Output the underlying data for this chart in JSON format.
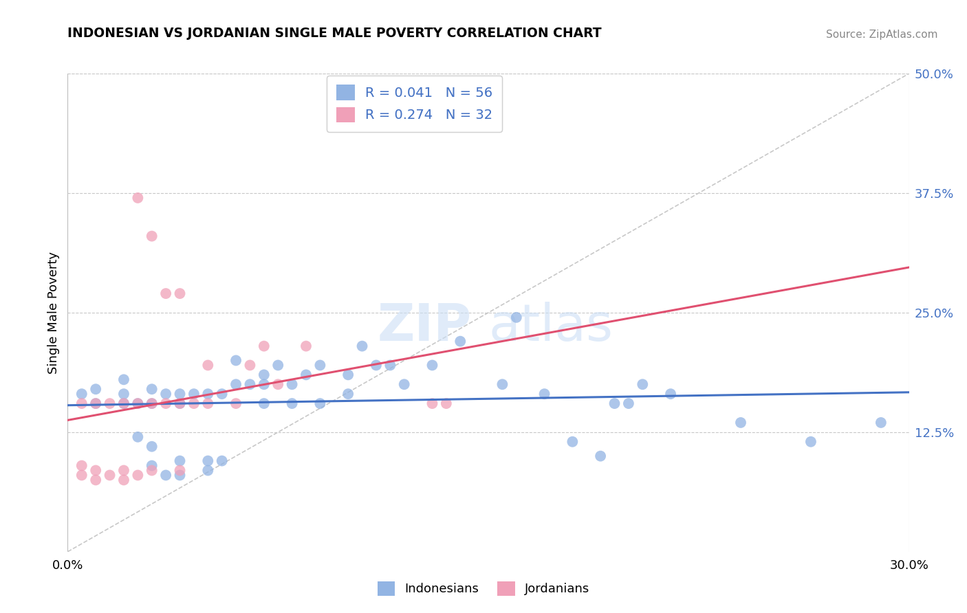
{
  "title": "INDONESIAN VS JORDANIAN SINGLE MALE POVERTY CORRELATION CHART",
  "source": "Source: ZipAtlas.com",
  "ylabel": "Single Male Poverty",
  "xlim": [
    0.0,
    0.3
  ],
  "ylim": [
    0.0,
    0.5
  ],
  "xticks": [
    0.0,
    0.05,
    0.1,
    0.15,
    0.2,
    0.25,
    0.3
  ],
  "xticklabels": [
    "0.0%",
    "",
    "",
    "",
    "",
    "",
    "30.0%"
  ],
  "yticks_right": [
    0.125,
    0.25,
    0.375,
    0.5
  ],
  "yticklabels_right": [
    "12.5%",
    "25.0%",
    "37.5%",
    "50.0%"
  ],
  "indonesian_color": "#92b4e3",
  "jordanian_color": "#f0a0b8",
  "indonesian_line_color": "#4472c4",
  "jordanian_line_color": "#e05070",
  "diagonal_color": "#c8c8c8",
  "legend_R_indonesian": "0.041",
  "legend_N_indonesian": "56",
  "legend_R_jordanian": "0.274",
  "legend_N_jordanian": "32",
  "legend_label_indonesian": "Indonesians",
  "legend_label_jordanian": "Jordanians",
  "indonesian_x": [
    0.005,
    0.01,
    0.01,
    0.02,
    0.02,
    0.02,
    0.025,
    0.025,
    0.03,
    0.03,
    0.03,
    0.03,
    0.035,
    0.035,
    0.04,
    0.04,
    0.04,
    0.04,
    0.045,
    0.05,
    0.05,
    0.05,
    0.055,
    0.055,
    0.06,
    0.06,
    0.065,
    0.07,
    0.07,
    0.07,
    0.075,
    0.08,
    0.08,
    0.085,
    0.09,
    0.09,
    0.1,
    0.1,
    0.105,
    0.11,
    0.115,
    0.12,
    0.13,
    0.14,
    0.155,
    0.16,
    0.17,
    0.18,
    0.19,
    0.195,
    0.2,
    0.205,
    0.215,
    0.24,
    0.265,
    0.29
  ],
  "indonesian_y": [
    0.165,
    0.155,
    0.17,
    0.155,
    0.165,
    0.18,
    0.12,
    0.155,
    0.09,
    0.11,
    0.155,
    0.17,
    0.08,
    0.165,
    0.08,
    0.095,
    0.155,
    0.165,
    0.165,
    0.085,
    0.095,
    0.165,
    0.095,
    0.165,
    0.175,
    0.2,
    0.175,
    0.155,
    0.175,
    0.185,
    0.195,
    0.155,
    0.175,
    0.185,
    0.155,
    0.195,
    0.165,
    0.185,
    0.215,
    0.195,
    0.195,
    0.175,
    0.195,
    0.22,
    0.175,
    0.245,
    0.165,
    0.115,
    0.1,
    0.155,
    0.155,
    0.175,
    0.165,
    0.135,
    0.115,
    0.135
  ],
  "jordanian_x": [
    0.005,
    0.005,
    0.005,
    0.01,
    0.01,
    0.01,
    0.015,
    0.015,
    0.02,
    0.02,
    0.02,
    0.025,
    0.025,
    0.025,
    0.03,
    0.03,
    0.03,
    0.035,
    0.035,
    0.04,
    0.04,
    0.04,
    0.045,
    0.05,
    0.05,
    0.06,
    0.065,
    0.07,
    0.075,
    0.085,
    0.13,
    0.135
  ],
  "jordanian_y": [
    0.08,
    0.09,
    0.155,
    0.075,
    0.085,
    0.155,
    0.08,
    0.155,
    0.075,
    0.085,
    0.155,
    0.08,
    0.155,
    0.37,
    0.085,
    0.155,
    0.33,
    0.155,
    0.27,
    0.085,
    0.155,
    0.27,
    0.155,
    0.155,
    0.195,
    0.155,
    0.195,
    0.215,
    0.175,
    0.215,
    0.155,
    0.155
  ],
  "watermark_zip": "ZIP",
  "watermark_atlas": "atlas",
  "background_color": "#ffffff",
  "grid_color": "#c8c8c8"
}
